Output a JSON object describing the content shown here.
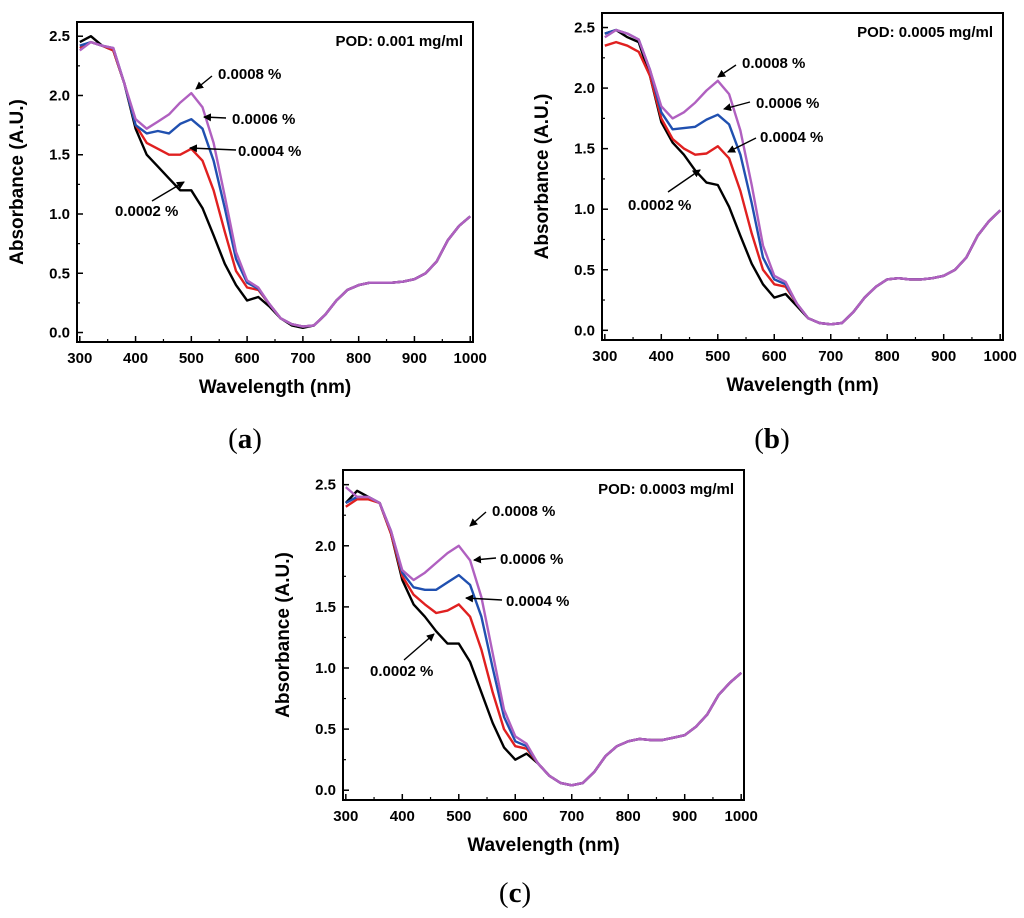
{
  "chart_data": [
    {
      "type": "line",
      "panel_label": "a",
      "annotation": "POD: 0.001 mg/ml",
      "xlabel": "Wavelength (nm)",
      "ylabel": "Absorbance (A.U.)",
      "xlim": [
        295,
        1005
      ],
      "ylim": [
        -0.08,
        2.62
      ],
      "xticks": [
        "300",
        "400",
        "500",
        "600",
        "700",
        "800",
        "900",
        "1000"
      ],
      "yticks": [
        "0.0",
        "0.5",
        "1.0",
        "1.5",
        "2.0",
        "2.5"
      ],
      "series": [
        {
          "name": "0.0002 %",
          "color": "#000000",
          "x": [
            300,
            320,
            340,
            360,
            380,
            400,
            420,
            440,
            460,
            480,
            500,
            520,
            540,
            560,
            580,
            600,
            620,
            640,
            660,
            680,
            700,
            720,
            740,
            760,
            780,
            800,
            820,
            840,
            860,
            880,
            900,
            920,
            940,
            960,
            980,
            1000
          ],
          "y": [
            2.45,
            2.5,
            2.42,
            2.38,
            2.1,
            1.72,
            1.5,
            1.4,
            1.3,
            1.2,
            1.2,
            1.05,
            0.82,
            0.58,
            0.4,
            0.27,
            0.3,
            0.22,
            0.12,
            0.06,
            0.04,
            0.06,
            0.15,
            0.27,
            0.36,
            0.4,
            0.42,
            0.42,
            0.42,
            0.43,
            0.45,
            0.5,
            0.6,
            0.78,
            0.9,
            0.98
          ]
        },
        {
          "name": "0.0004 %",
          "color": "#e02020",
          "x": [
            300,
            320,
            340,
            360,
            380,
            400,
            420,
            440,
            460,
            480,
            500,
            520,
            540,
            560,
            580,
            600,
            620,
            640,
            660,
            680,
            700,
            720,
            740,
            760,
            780,
            800,
            820,
            840,
            860,
            880,
            900,
            920,
            940,
            960,
            980,
            1000
          ],
          "y": [
            2.4,
            2.45,
            2.42,
            2.38,
            2.1,
            1.75,
            1.6,
            1.55,
            1.5,
            1.5,
            1.55,
            1.45,
            1.2,
            0.85,
            0.52,
            0.38,
            0.36,
            0.24,
            0.12,
            0.07,
            0.05,
            0.06,
            0.15,
            0.27,
            0.36,
            0.4,
            0.42,
            0.42,
            0.42,
            0.43,
            0.45,
            0.5,
            0.6,
            0.78,
            0.9,
            0.98
          ]
        },
        {
          "name": "0.0006 %",
          "color": "#2050b0",
          "x": [
            300,
            320,
            340,
            360,
            380,
            400,
            420,
            440,
            460,
            480,
            500,
            520,
            540,
            560,
            580,
            600,
            620,
            640,
            660,
            680,
            700,
            720,
            740,
            760,
            780,
            800,
            820,
            840,
            860,
            880,
            900,
            920,
            940,
            960,
            980,
            1000
          ],
          "y": [
            2.42,
            2.45,
            2.42,
            2.4,
            2.1,
            1.75,
            1.68,
            1.7,
            1.68,
            1.76,
            1.8,
            1.72,
            1.45,
            1.05,
            0.62,
            0.42,
            0.37,
            0.24,
            0.12,
            0.07,
            0.05,
            0.06,
            0.15,
            0.27,
            0.36,
            0.4,
            0.42,
            0.42,
            0.42,
            0.43,
            0.45,
            0.5,
            0.6,
            0.78,
            0.9,
            0.98
          ]
        },
        {
          "name": "0.0008 %",
          "color": "#b060c0",
          "x": [
            300,
            320,
            340,
            360,
            380,
            400,
            420,
            440,
            460,
            480,
            500,
            520,
            540,
            560,
            580,
            600,
            620,
            640,
            660,
            680,
            700,
            720,
            740,
            760,
            780,
            800,
            820,
            840,
            860,
            880,
            900,
            920,
            940,
            960,
            980,
            1000
          ],
          "y": [
            2.38,
            2.45,
            2.42,
            2.4,
            2.1,
            1.8,
            1.72,
            1.78,
            1.84,
            1.94,
            2.02,
            1.9,
            1.6,
            1.15,
            0.68,
            0.44,
            0.38,
            0.24,
            0.12,
            0.07,
            0.05,
            0.06,
            0.15,
            0.27,
            0.36,
            0.4,
            0.42,
            0.42,
            0.42,
            0.43,
            0.45,
            0.5,
            0.6,
            0.78,
            0.9,
            0.98
          ]
        }
      ]
    },
    {
      "type": "line",
      "panel_label": "b",
      "annotation": "POD: 0.0005 mg/ml",
      "xlabel": "Wavelength (nm)",
      "ylabel": "Absorbance (A.U.)",
      "xlim": [
        295,
        1005
      ],
      "ylim": [
        -0.08,
        2.62
      ],
      "xticks": [
        "300",
        "400",
        "500",
        "600",
        "700",
        "800",
        "900",
        "1000"
      ],
      "yticks": [
        "0.0",
        "0.5",
        "1.0",
        "1.5",
        "2.0",
        "2.5"
      ],
      "series": [
        {
          "name": "0.0002 %",
          "color": "#000000",
          "x": [
            300,
            320,
            340,
            360,
            380,
            400,
            420,
            440,
            460,
            480,
            500,
            520,
            540,
            560,
            580,
            600,
            620,
            640,
            660,
            680,
            700,
            720,
            740,
            760,
            780,
            800,
            820,
            840,
            860,
            880,
            900,
            920,
            940,
            960,
            980,
            1000
          ],
          "y": [
            2.45,
            2.48,
            2.42,
            2.38,
            2.1,
            1.72,
            1.55,
            1.45,
            1.32,
            1.22,
            1.2,
            1.02,
            0.78,
            0.55,
            0.38,
            0.27,
            0.3,
            0.2,
            0.1,
            0.06,
            0.05,
            0.06,
            0.15,
            0.27,
            0.36,
            0.42,
            0.43,
            0.42,
            0.42,
            0.43,
            0.45,
            0.5,
            0.6,
            0.78,
            0.9,
            0.99
          ]
        },
        {
          "name": "0.0004 %",
          "color": "#e02020",
          "x": [
            300,
            320,
            340,
            360,
            380,
            400,
            420,
            440,
            460,
            480,
            500,
            520,
            540,
            560,
            580,
            600,
            620,
            640,
            660,
            680,
            700,
            720,
            740,
            760,
            780,
            800,
            820,
            840,
            860,
            880,
            900,
            920,
            940,
            960,
            980,
            1000
          ],
          "y": [
            2.35,
            2.38,
            2.35,
            2.3,
            2.1,
            1.75,
            1.58,
            1.5,
            1.45,
            1.46,
            1.52,
            1.42,
            1.15,
            0.8,
            0.5,
            0.38,
            0.36,
            0.22,
            0.1,
            0.06,
            0.05,
            0.06,
            0.15,
            0.27,
            0.36,
            0.42,
            0.43,
            0.42,
            0.42,
            0.43,
            0.45,
            0.5,
            0.6,
            0.78,
            0.9,
            0.99
          ]
        },
        {
          "name": "0.0006 %",
          "color": "#2050b0",
          "x": [
            300,
            320,
            340,
            360,
            380,
            400,
            420,
            440,
            460,
            480,
            500,
            520,
            540,
            560,
            580,
            600,
            620,
            640,
            660,
            680,
            700,
            720,
            740,
            760,
            780,
            800,
            820,
            840,
            860,
            880,
            900,
            920,
            940,
            960,
            980,
            1000
          ],
          "y": [
            2.45,
            2.48,
            2.45,
            2.4,
            2.15,
            1.8,
            1.66,
            1.67,
            1.68,
            1.74,
            1.78,
            1.7,
            1.45,
            1.05,
            0.6,
            0.42,
            0.38,
            0.22,
            0.1,
            0.06,
            0.05,
            0.06,
            0.15,
            0.27,
            0.36,
            0.42,
            0.43,
            0.42,
            0.42,
            0.43,
            0.45,
            0.5,
            0.6,
            0.78,
            0.9,
            0.99
          ]
        },
        {
          "name": "0.0008 %",
          "color": "#b060c0",
          "x": [
            300,
            320,
            340,
            360,
            380,
            400,
            420,
            440,
            460,
            480,
            500,
            520,
            540,
            560,
            580,
            600,
            620,
            640,
            660,
            680,
            700,
            720,
            740,
            760,
            780,
            800,
            820,
            840,
            860,
            880,
            900,
            920,
            940,
            960,
            980,
            1000
          ],
          "y": [
            2.42,
            2.48,
            2.45,
            2.4,
            2.15,
            1.85,
            1.75,
            1.8,
            1.88,
            1.98,
            2.06,
            1.95,
            1.65,
            1.2,
            0.7,
            0.45,
            0.4,
            0.22,
            0.1,
            0.06,
            0.05,
            0.06,
            0.15,
            0.27,
            0.36,
            0.42,
            0.43,
            0.42,
            0.42,
            0.43,
            0.45,
            0.5,
            0.6,
            0.78,
            0.9,
            0.99
          ]
        }
      ]
    },
    {
      "type": "line",
      "panel_label": "c",
      "annotation": "POD: 0.0003 mg/ml",
      "xlabel": "Wavelength (nm)",
      "ylabel": "Absorbance (A.U.)",
      "xlim": [
        295,
        1005
      ],
      "ylim": [
        -0.08,
        2.62
      ],
      "xticks": [
        "300",
        "400",
        "500",
        "600",
        "700",
        "800",
        "900",
        "1000"
      ],
      "yticks": [
        "0.0",
        "0.5",
        "1.0",
        "1.5",
        "2.0",
        "2.5"
      ],
      "series": [
        {
          "name": "0.0002 %",
          "color": "#000000",
          "x": [
            300,
            320,
            340,
            360,
            380,
            400,
            420,
            440,
            460,
            480,
            500,
            520,
            540,
            560,
            580,
            600,
            620,
            640,
            660,
            680,
            700,
            720,
            740,
            760,
            780,
            800,
            820,
            840,
            860,
            880,
            900,
            920,
            940,
            960,
            980,
            1000
          ],
          "y": [
            2.35,
            2.45,
            2.4,
            2.35,
            2.1,
            1.72,
            1.52,
            1.42,
            1.3,
            1.2,
            1.2,
            1.05,
            0.8,
            0.55,
            0.35,
            0.25,
            0.3,
            0.22,
            0.12,
            0.06,
            0.04,
            0.06,
            0.15,
            0.28,
            0.36,
            0.4,
            0.42,
            0.41,
            0.41,
            0.43,
            0.45,
            0.52,
            0.62,
            0.78,
            0.88,
            0.96
          ]
        },
        {
          "name": "0.0004 %",
          "color": "#e02020",
          "x": [
            300,
            320,
            340,
            360,
            380,
            400,
            420,
            440,
            460,
            480,
            500,
            520,
            540,
            560,
            580,
            600,
            620,
            640,
            660,
            680,
            700,
            720,
            740,
            760,
            780,
            800,
            820,
            840,
            860,
            880,
            900,
            920,
            940,
            960,
            980,
            1000
          ],
          "y": [
            2.32,
            2.38,
            2.38,
            2.35,
            2.1,
            1.75,
            1.6,
            1.52,
            1.45,
            1.47,
            1.52,
            1.42,
            1.15,
            0.8,
            0.5,
            0.36,
            0.34,
            0.22,
            0.12,
            0.06,
            0.04,
            0.06,
            0.15,
            0.28,
            0.36,
            0.4,
            0.42,
            0.41,
            0.41,
            0.43,
            0.45,
            0.52,
            0.62,
            0.78,
            0.88,
            0.96
          ]
        },
        {
          "name": "0.0006 %",
          "color": "#2050b0",
          "x": [
            300,
            320,
            340,
            360,
            380,
            400,
            420,
            440,
            460,
            480,
            500,
            520,
            540,
            560,
            580,
            600,
            620,
            640,
            660,
            680,
            700,
            720,
            740,
            760,
            780,
            800,
            820,
            840,
            860,
            880,
            900,
            920,
            940,
            960,
            980,
            1000
          ],
          "y": [
            2.35,
            2.4,
            2.4,
            2.35,
            2.12,
            1.78,
            1.66,
            1.64,
            1.64,
            1.7,
            1.76,
            1.68,
            1.42,
            1.0,
            0.6,
            0.4,
            0.36,
            0.22,
            0.12,
            0.06,
            0.04,
            0.06,
            0.15,
            0.28,
            0.36,
            0.4,
            0.42,
            0.41,
            0.41,
            0.43,
            0.45,
            0.52,
            0.62,
            0.78,
            0.88,
            0.96
          ]
        },
        {
          "name": "0.0008 %",
          "color": "#b060c0",
          "x": [
            300,
            320,
            340,
            360,
            380,
            400,
            420,
            440,
            460,
            480,
            500,
            520,
            540,
            560,
            580,
            600,
            620,
            640,
            660,
            680,
            700,
            720,
            740,
            760,
            780,
            800,
            820,
            840,
            860,
            880,
            900,
            920,
            940,
            960,
            980,
            1000
          ],
          "y": [
            2.48,
            2.4,
            2.4,
            2.35,
            2.12,
            1.8,
            1.72,
            1.78,
            1.86,
            1.94,
            2.0,
            1.88,
            1.58,
            1.12,
            0.66,
            0.44,
            0.38,
            0.22,
            0.12,
            0.06,
            0.04,
            0.06,
            0.15,
            0.28,
            0.36,
            0.4,
            0.42,
            0.41,
            0.41,
            0.43,
            0.45,
            0.52,
            0.62,
            0.78,
            0.88,
            0.96
          ]
        }
      ]
    }
  ]
}
